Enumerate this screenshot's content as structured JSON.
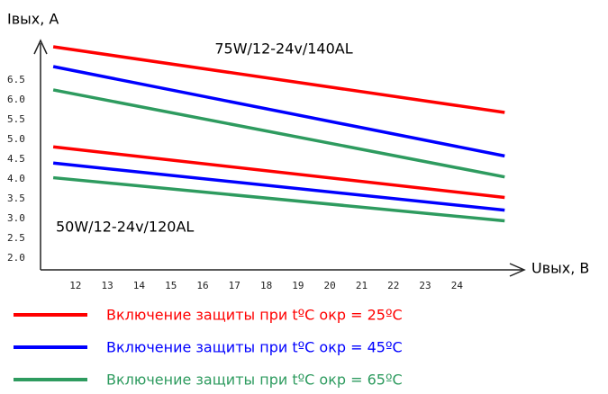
{
  "chart_data": {
    "type": "line",
    "y_label": "Iвых, А",
    "x_label": "Uвых, В",
    "x": [
      11.3,
      25.5
    ],
    "xlim": [
      10.9,
      26.2
    ],
    "ylim": [
      1.7,
      7.5
    ],
    "xticks": [
      12,
      13,
      14,
      15,
      16,
      17,
      18,
      19,
      20,
      21,
      22,
      23,
      24
    ],
    "yticks": [
      {
        "value": 2,
        "label": "2.0"
      },
      {
        "value": 2.5,
        "label": "2.5"
      },
      {
        "value": 3,
        "label": "3.0"
      },
      {
        "value": 3.5,
        "label": "3.5"
      },
      {
        "value": 4,
        "label": "4.0"
      },
      {
        "value": 4.5,
        "label": "4.5"
      },
      {
        "value": 5,
        "label": "5.0"
      },
      {
        "value": 5.5,
        "label": "5.5"
      },
      {
        "value": 6,
        "label": "6.0"
      },
      {
        "value": 6.5,
        "label": "6.5"
      }
    ],
    "legend": [
      {
        "name": "Включение защиты при tºC окр = 25ºC",
        "color": "#ff0000"
      },
      {
        "name": "Включение защиты при tºC окр = 45ºC",
        "color": "#0000ff"
      },
      {
        "name": "Включение защиты при tºC окр = 65ºC",
        "color": "#2e9b5f"
      }
    ],
    "groups": [
      {
        "label": "75W/12-24v/140AL",
        "series": [
          {
            "values": [
              7.34,
              5.68
            ]
          },
          {
            "values": [
              6.84,
              4.58
            ]
          },
          {
            "values": [
              6.25,
              4.05
            ]
          }
        ]
      },
      {
        "label": "50W/12-24v/120AL",
        "series": [
          {
            "values": [
              4.81,
              3.53
            ]
          },
          {
            "values": [
              4.4,
              3.21
            ]
          },
          {
            "values": [
              4.03,
              2.94
            ]
          }
        ]
      }
    ]
  }
}
